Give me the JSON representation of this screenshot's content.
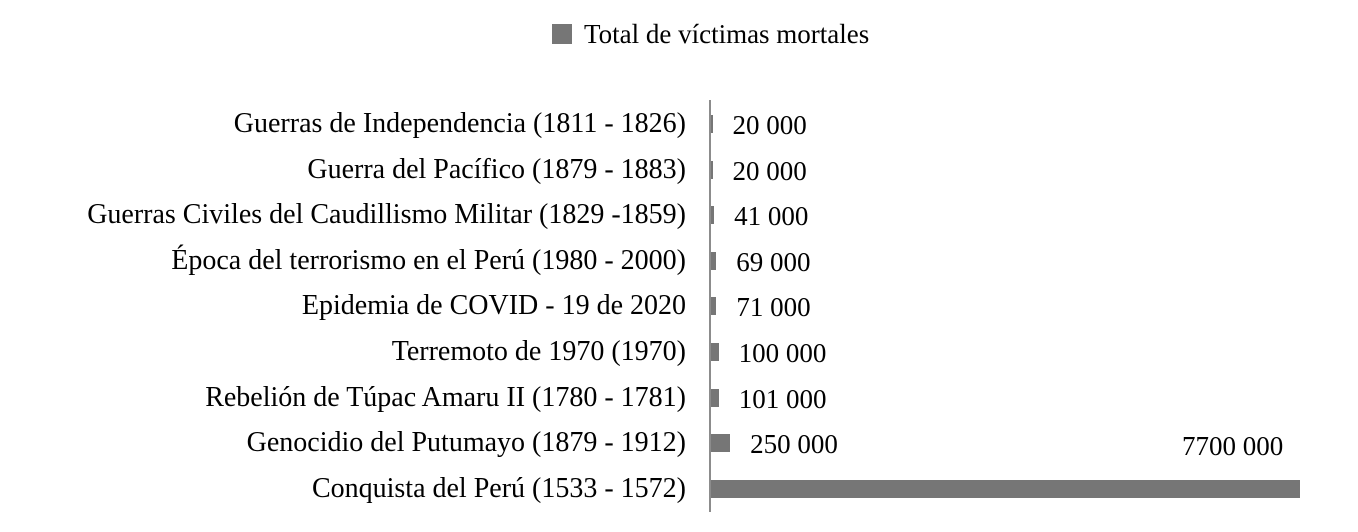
{
  "chart_data": {
    "type": "bar",
    "orientation": "horizontal",
    "title": "",
    "xlabel": "",
    "ylabel": "",
    "legend": {
      "position": "top",
      "entries": [
        "Total de víctimas mortales"
      ]
    },
    "grid": false,
    "xlim": [
      0,
      7700000
    ],
    "bar_color": "#767676",
    "categories": [
      "Guerras de Independencia (1811 - 1826)",
      "Guerra del Pacífico (1879 - 1883)",
      "Guerras Civiles del Caudillismo Militar (1829 -1859)",
      "Época del terrorismo en el Perú (1980 - 2000)",
      "Epidemia de COVID - 19 de 2020",
      "Terremoto de 1970 (1970)",
      "Rebelión de Túpac Amaru II (1780 - 1781)",
      "Genocidio del Putumayo (1879 - 1912)",
      "Conquista del Perú (1533 - 1572)"
    ],
    "series": [
      {
        "name": "Total de víctimas mortales",
        "values": [
          20000,
          20000,
          41000,
          69000,
          71000,
          100000,
          101000,
          250000,
          7700000
        ],
        "labels": [
          "20 000",
          "20 000",
          "41 000",
          "69 000",
          "71 000",
          "100 000",
          "101 000",
          "250 000",
          "7700 000"
        ]
      }
    ]
  },
  "legend": {
    "label": "Total de víctimas mortales",
    "color": "#767676"
  },
  "rows": [
    {
      "label": "Guerras de Independencia (1811 - 1826)",
      "value_label": "20 000"
    },
    {
      "label": "Guerra del Pacífico (1879 - 1883)",
      "value_label": "20 000"
    },
    {
      "label": "Guerras Civiles del Caudillismo Militar (1829 -1859)",
      "value_label": "41 000"
    },
    {
      "label": "Época del terrorismo en el Perú (1980 - 2000)",
      "value_label": "69 000"
    },
    {
      "label": "Epidemia de COVID - 19 de 2020",
      "value_label": "71 000"
    },
    {
      "label": "Terremoto de 1970 (1970)",
      "value_label": "100 000"
    },
    {
      "label": "Rebelión de Túpac Amaru II (1780 - 1781)",
      "value_label": "101 000"
    },
    {
      "label": "Genocidio del Putumayo (1879 - 1912)",
      "value_label": "250 000"
    },
    {
      "label": "Conquista del Perú (1533 - 1572)",
      "value_label": "7700 000"
    }
  ]
}
